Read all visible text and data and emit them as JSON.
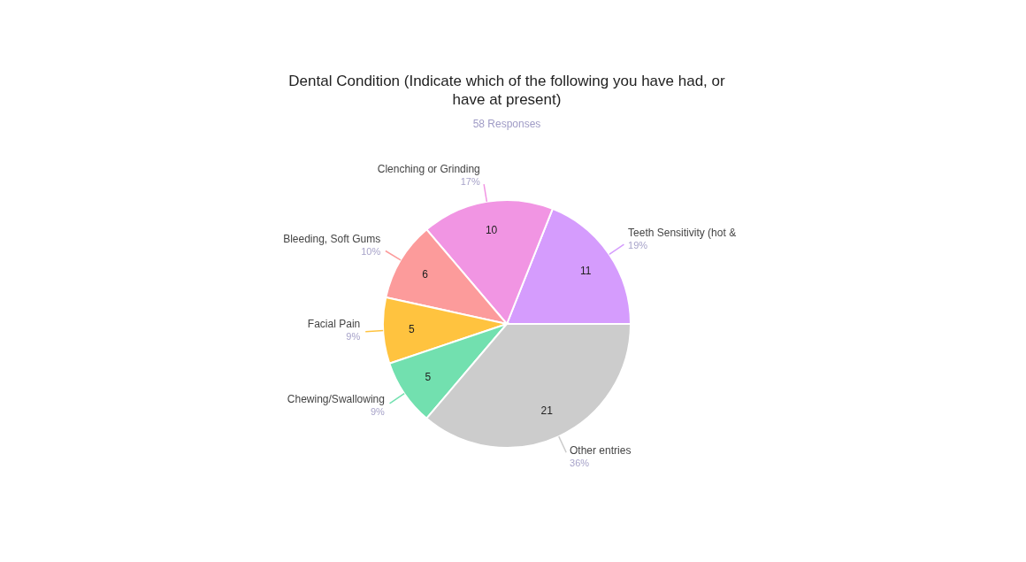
{
  "chart_data": {
    "type": "pie",
    "title": "Dental Condition (Indicate which of the following you have had, or have at present)",
    "subtitle": "58 Responses",
    "categories": [
      "Teeth Sensitivity (hot &",
      "Clenching or Grinding",
      "Bleeding, Soft Gums",
      "Facial Pain",
      "Chewing/Swallowing",
      "Other entries"
    ],
    "values": [
      11,
      10,
      6,
      5,
      5,
      21
    ],
    "colors": [
      "#d59cfd",
      "#f195e3",
      "#fc9b9b",
      "#ffc33f",
      "#72e0af",
      "#cccccc"
    ],
    "data_labels": true,
    "annotations": [
      {
        "text": "19%",
        "x": "Teeth Sensitivity (hot &"
      },
      {
        "text": "17%",
        "x": "Clenching or Grinding"
      },
      {
        "text": "10%",
        "x": "Bleeding, Soft Gums"
      },
      {
        "text": "9%",
        "x": "Facial Pain"
      },
      {
        "text": "9%",
        "x": "Chewing/Swallowing"
      },
      {
        "text": "36%",
        "x": "Other entries"
      }
    ]
  }
}
